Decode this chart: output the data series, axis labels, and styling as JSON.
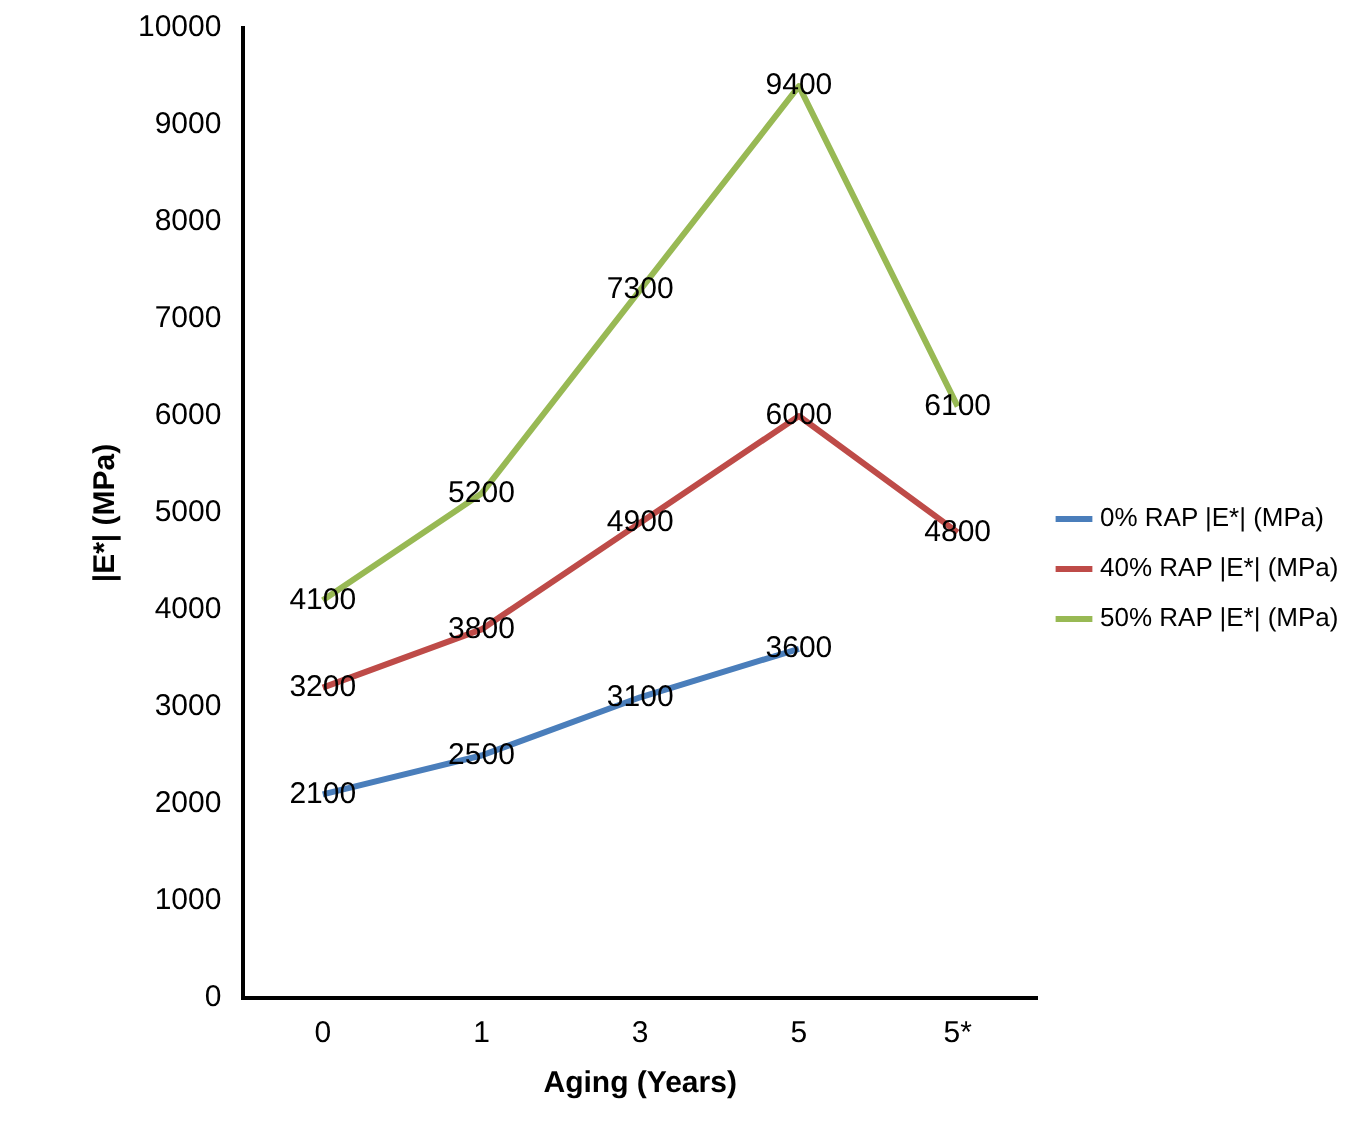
{
  "chart_data": {
    "type": "line",
    "xlabel": "Aging (Years)",
    "ylabel": "|E*| (MPa)",
    "categories": [
      "0",
      "1",
      "3",
      "5",
      "5*"
    ],
    "series": [
      {
        "name": "0% RAP |E*| (MPa)",
        "color": "#4a7ebb",
        "values": [
          2100,
          2500,
          3100,
          3600,
          null
        ]
      },
      {
        "name": "40% RAP |E*| (MPa)",
        "color": "#be4b48",
        "values": [
          3200,
          3800,
          4900,
          6000,
          4800
        ]
      },
      {
        "name": "50% RAP |E*| (MPa)",
        "color": "#98b954",
        "values": [
          4100,
          5200,
          7300,
          9400,
          6100
        ]
      }
    ],
    "ylim": [
      0,
      10000
    ],
    "yticks": [
      0,
      1000,
      2000,
      3000,
      4000,
      5000,
      6000,
      7000,
      8000,
      9000,
      10000
    ],
    "grid": false,
    "legend": "right",
    "data_labels": true,
    "marker": "none",
    "line_style": "solid"
  }
}
